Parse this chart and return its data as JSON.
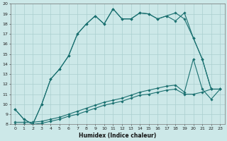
{
  "xlabel": "Humidex (Indice chaleur)",
  "xlim": [
    -0.5,
    23.5
  ],
  "ylim": [
    8,
    20
  ],
  "yticks": [
    8,
    9,
    10,
    11,
    12,
    13,
    14,
    15,
    16,
    17,
    18,
    19,
    20
  ],
  "xticks": [
    0,
    1,
    2,
    3,
    4,
    5,
    6,
    7,
    8,
    9,
    10,
    11,
    12,
    13,
    14,
    15,
    16,
    17,
    18,
    19,
    20,
    21,
    22,
    23
  ],
  "bg_color": "#cce8e8",
  "grid_color": "#aacfcf",
  "line_color": "#1a7070",
  "line1_x": [
    0,
    1,
    2,
    3,
    4,
    5,
    6,
    7,
    8,
    9,
    10,
    11,
    12,
    13,
    14,
    15,
    16,
    17,
    18,
    19,
    20,
    21,
    22,
    23
  ],
  "line1_y": [
    9.5,
    8.5,
    8.0,
    10.0,
    12.5,
    13.5,
    14.8,
    17.0,
    18.0,
    18.8,
    18.0,
    19.5,
    18.5,
    18.5,
    19.1,
    19.0,
    18.5,
    18.8,
    19.1,
    18.5,
    16.6,
    14.5,
    11.5,
    11.5
  ],
  "line2_x": [
    0,
    1,
    2,
    3,
    4,
    5,
    6,
    7,
    8,
    9,
    10,
    11,
    12,
    13,
    14,
    15,
    16,
    17,
    18,
    19,
    20,
    21,
    22,
    23
  ],
  "line2_y": [
    9.5,
    8.5,
    8.0,
    10.0,
    12.5,
    13.5,
    14.8,
    17.0,
    18.0,
    18.8,
    18.0,
    19.5,
    18.5,
    18.5,
    19.1,
    19.0,
    18.5,
    18.8,
    18.3,
    19.1,
    16.6,
    14.5,
    11.5,
    11.5
  ],
  "line3_x": [
    0,
    1,
    2,
    3,
    4,
    5,
    6,
    7,
    8,
    9,
    10,
    11,
    12,
    13,
    14,
    15,
    16,
    17,
    18,
    19,
    20,
    21,
    22,
    23
  ],
  "line3_y": [
    8.2,
    8.2,
    8.2,
    8.3,
    8.5,
    8.7,
    9.0,
    9.3,
    9.6,
    9.9,
    10.2,
    10.4,
    10.6,
    10.9,
    11.2,
    11.4,
    11.6,
    11.8,
    11.9,
    11.2,
    14.5,
    11.5,
    10.5,
    11.5
  ],
  "line4_x": [
    0,
    1,
    2,
    3,
    4,
    5,
    6,
    7,
    8,
    9,
    10,
    11,
    12,
    13,
    14,
    15,
    16,
    17,
    18,
    19,
    20,
    21,
    22,
    23
  ],
  "line4_y": [
    8.0,
    8.0,
    8.0,
    8.1,
    8.3,
    8.5,
    8.8,
    9.0,
    9.3,
    9.6,
    9.9,
    10.1,
    10.3,
    10.6,
    10.9,
    11.0,
    11.2,
    11.4,
    11.5,
    11.0,
    11.0,
    11.2,
    11.5,
    11.5
  ]
}
